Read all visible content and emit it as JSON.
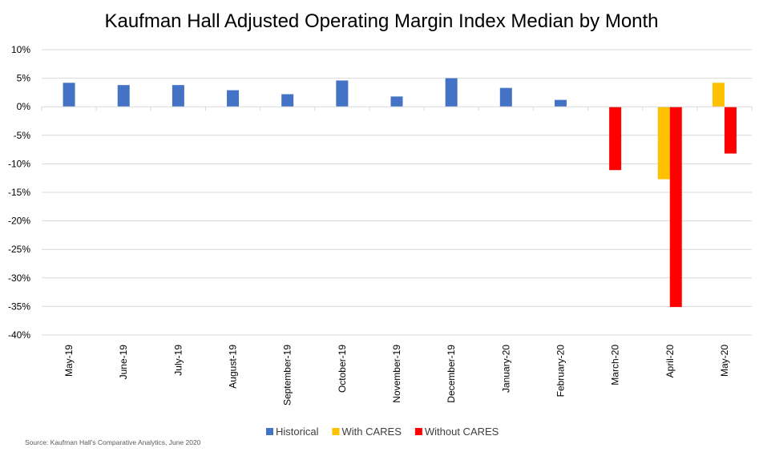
{
  "chart_data": {
    "type": "bar",
    "title": "Kaufman Hall Adjusted Operating Margin Index Median by Month",
    "categories": [
      "May-19",
      "June-19",
      "July-19",
      "August-19",
      "September-19",
      "October-19",
      "November-19",
      "December-19",
      "January-20",
      "February-20",
      "March-20",
      "April-20",
      "May-20"
    ],
    "series": [
      {
        "name": "Historical",
        "color": "#4472c4",
        "values": [
          4.2,
          3.8,
          3.8,
          2.9,
          2.2,
          4.6,
          1.8,
          5.0,
          3.3,
          1.2,
          null,
          null,
          null
        ]
      },
      {
        "name": "With CARES",
        "color": "#ffc000",
        "values": [
          null,
          null,
          null,
          null,
          null,
          null,
          null,
          null,
          null,
          null,
          null,
          -12.7,
          4.2
        ]
      },
      {
        "name": "Without CARES",
        "color": "#ff0000",
        "values": [
          null,
          null,
          null,
          null,
          null,
          null,
          null,
          null,
          null,
          null,
          -11.1,
          -35.1,
          -8.2
        ]
      }
    ],
    "ylim": [
      -40,
      10
    ],
    "yticks": [
      10,
      5,
      0,
      -5,
      -10,
      -15,
      -20,
      -25,
      -30,
      -35,
      -40
    ],
    "ytick_labels": [
      "10%",
      "5%",
      "0%",
      "-5%",
      "-10%",
      "-15%",
      "-20%",
      "-25%",
      "-30%",
      "-35%",
      "-40%"
    ],
    "xlabel": "",
    "ylabel": "",
    "grid": true,
    "legend_position": "bottom"
  },
  "source": "Source: Kaufman Hall's Comparative Analytics, June 2020"
}
